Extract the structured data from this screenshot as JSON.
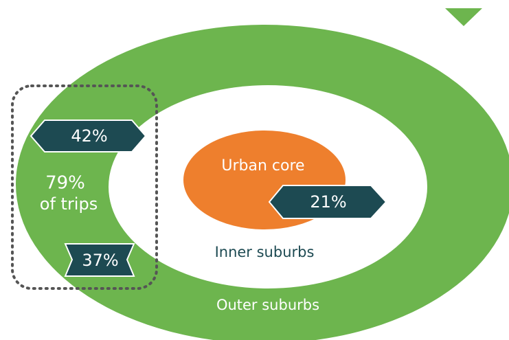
{
  "zones": {
    "urban_core": "Urban core",
    "inner_suburbs": "Inner suburbs",
    "outer_suburbs": "Outer suburbs"
  },
  "badges": {
    "outer_left": "42%",
    "outer_bottom": "37%",
    "inner": "21%"
  },
  "group": {
    "share": "79%",
    "caption": "of trips"
  }
}
